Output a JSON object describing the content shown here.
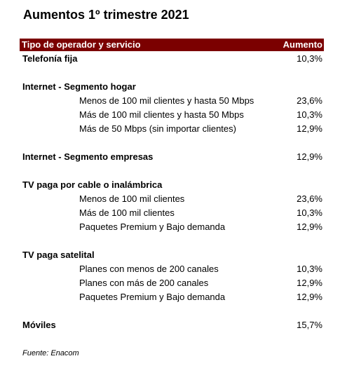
{
  "title": "Aumentos 1º trimestre 2021",
  "table": {
    "header": [
      "Tipo de operador y servicio",
      "Aumento"
    ],
    "sections": [
      {
        "label": "Telefonía fija",
        "value": "10,3%"
      },
      {
        "label": "Internet - Segmento hogar",
        "items": [
          [
            "Menos de 100 mil clientes y hasta 50 Mbps",
            "23,6%"
          ],
          [
            "Más de 100 mil clientes y hasta 50 Mbps",
            "10,3%"
          ],
          [
            "Más de 50 Mbps (sin importar clientes)",
            "12,9%"
          ]
        ]
      },
      {
        "label": "Internet - Segmento empresas",
        "value": "12,9%"
      },
      {
        "label": "TV paga por cable o inalámbrica",
        "items": [
          [
            "Menos de 100 mil clientes",
            "23,6%"
          ],
          [
            "Más de 100 mil clientes",
            "10,3%"
          ],
          [
            "Paquetes Premium y Bajo demanda",
            "12,9%"
          ]
        ]
      },
      {
        "label": "TV paga satelital",
        "items": [
          [
            "Planes con menos de 200 canales",
            "10,3%"
          ],
          [
            "Planes con más de 200 canales",
            "12,9%"
          ],
          [
            "Paquetes Premium y Bajo demanda",
            "12,9%"
          ]
        ]
      },
      {
        "label": "Móviles",
        "value": "15,7%"
      }
    ]
  },
  "source": "Fuente: Enacom"
}
